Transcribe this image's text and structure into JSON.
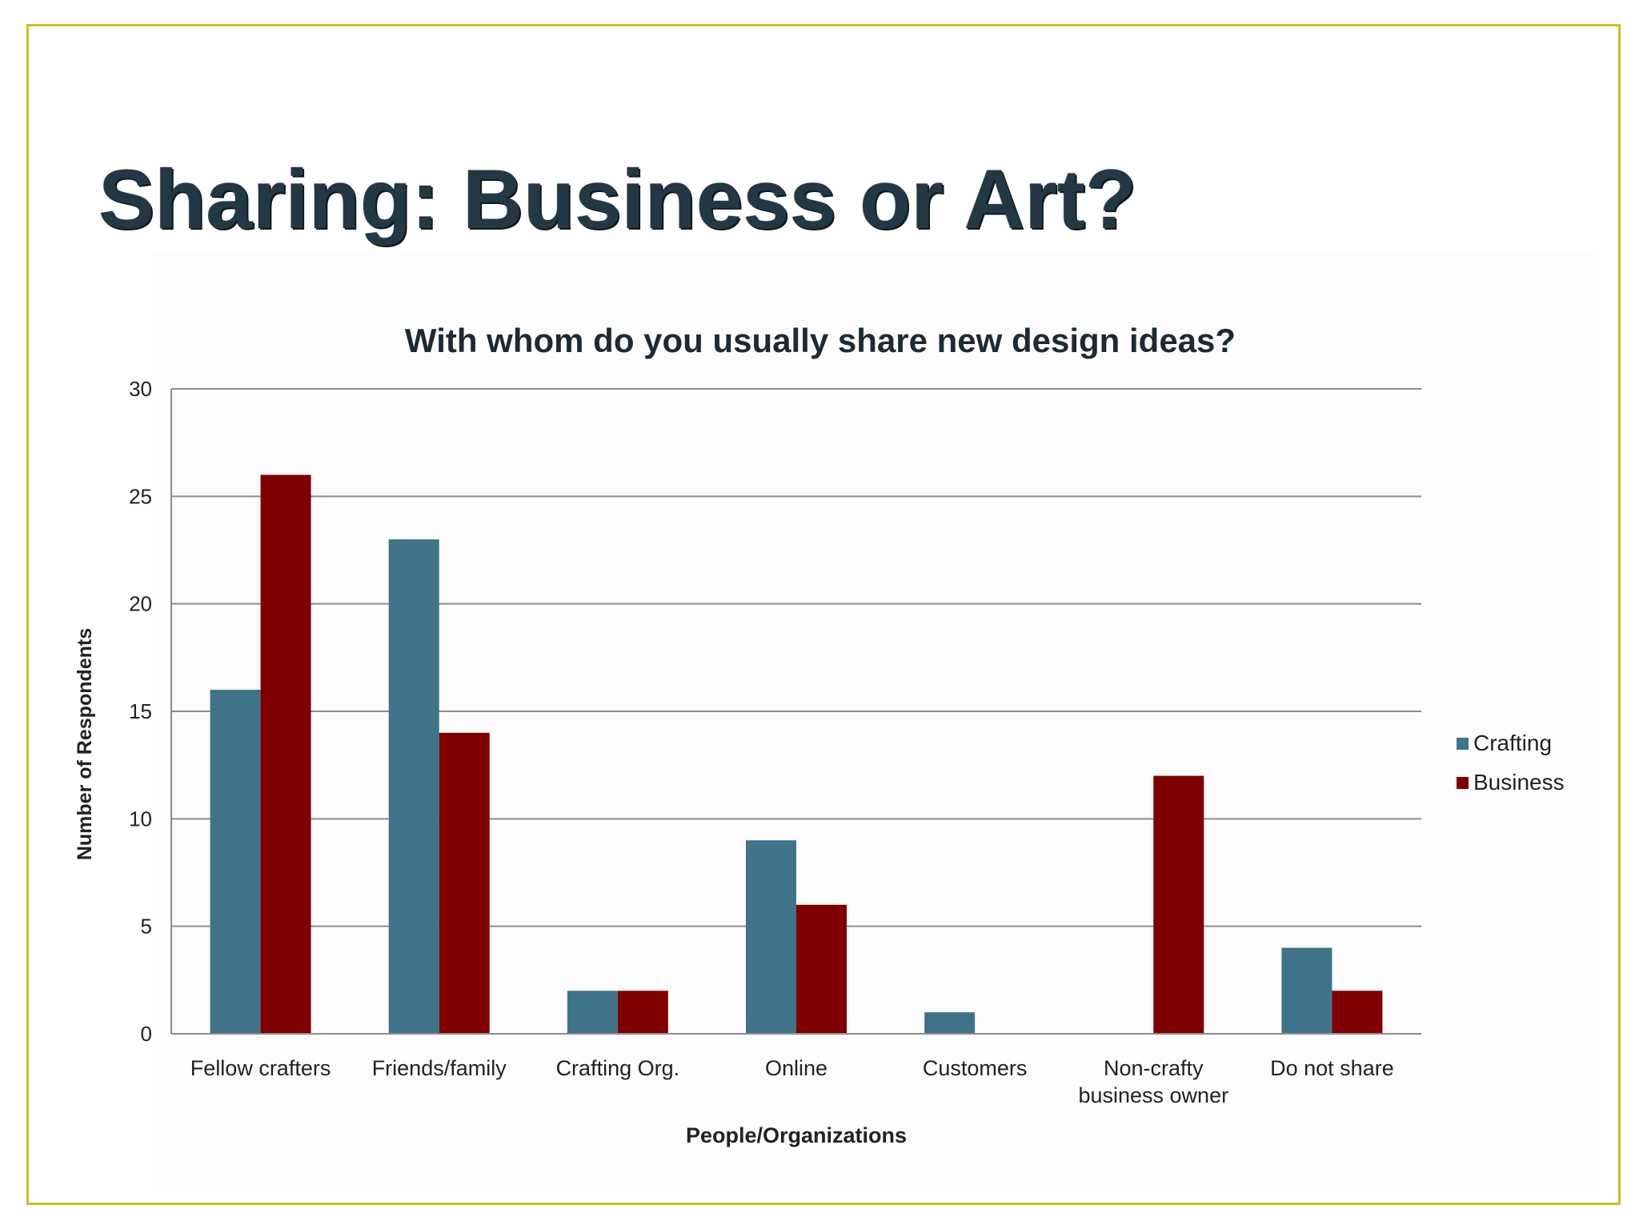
{
  "slide": {
    "title": "Sharing: Business or Art?"
  },
  "colors": {
    "crafting": "#3f738a",
    "business": "#800000",
    "grid": "#8c8c8c",
    "border": "#c9c21c"
  },
  "chart_data": {
    "type": "bar",
    "title": "With whom do you usually share new design ideas?",
    "xlabel": "People/Organizations",
    "ylabel": "Number of Respondents",
    "ylim": [
      0,
      30
    ],
    "yticks": [
      0,
      5,
      10,
      15,
      20,
      25,
      30
    ],
    "grid": true,
    "legend_position": "right",
    "categories": [
      [
        "Fellow crafters"
      ],
      [
        "Friends/family"
      ],
      [
        "Crafting Org."
      ],
      [
        "Online"
      ],
      [
        "Customers"
      ],
      [
        "Non-crafty",
        "business owner"
      ],
      [
        "Do not share"
      ]
    ],
    "series": [
      {
        "name": "Crafting",
        "color": "#3f738a",
        "values": [
          16,
          23,
          2,
          9,
          1,
          0,
          4
        ]
      },
      {
        "name": "Business",
        "color": "#800000",
        "values": [
          26,
          14,
          2,
          6,
          0,
          12,
          2
        ]
      }
    ]
  }
}
